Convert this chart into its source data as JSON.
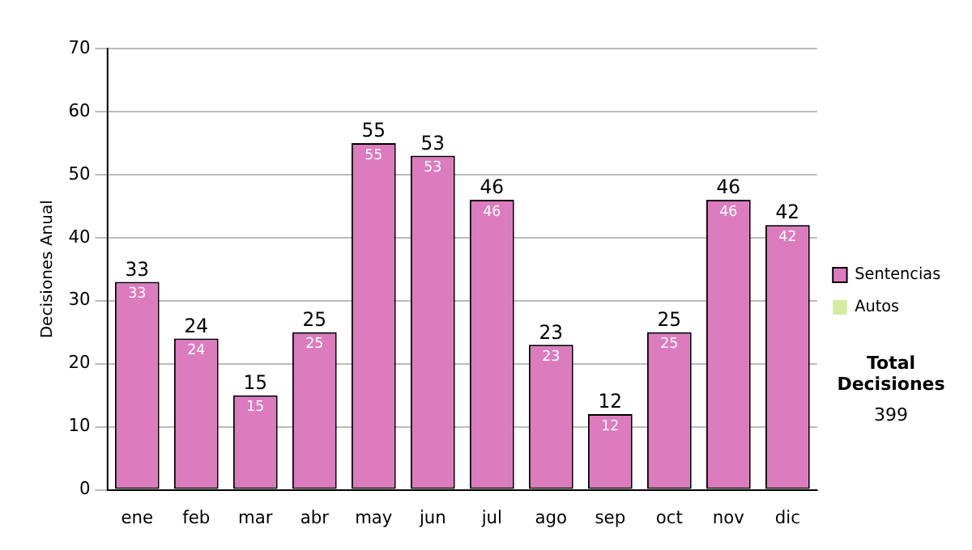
{
  "chart_data": {
    "type": "bar",
    "stacked": true,
    "ylabel": "Decisiones Anual",
    "categories": [
      "ene",
      "feb",
      "mar",
      "abr",
      "may",
      "jun",
      "jul",
      "ago",
      "sep",
      "oct",
      "nov",
      "dic"
    ],
    "series": [
      {
        "name": "Sentencias",
        "color": "#dd7bbf",
        "values": [
          33,
          24,
          15,
          25,
          55,
          53,
          46,
          23,
          12,
          25,
          46,
          42
        ],
        "value_labels": [
          "33",
          "24",
          "15",
          "25",
          "55",
          "53",
          "46",
          "23",
          "12",
          "25",
          "46",
          "42"
        ]
      },
      {
        "name": "Autos",
        "color": "#d6eba0",
        "values": [
          0,
          0,
          0,
          0,
          0,
          0,
          0,
          0,
          0,
          0,
          0,
          0
        ]
      }
    ],
    "totals": [
      "33",
      "24",
      "15",
      "25",
      "55",
      "53",
      "46",
      "23",
      "12",
      "25",
      "46",
      "42"
    ],
    "ylim": [
      0,
      70
    ],
    "yticks": [
      0,
      10,
      20,
      30,
      40,
      50,
      60,
      70
    ],
    "grid": "y",
    "legend": "right",
    "annotations": [
      "Total Decisiones",
      "399"
    ]
  }
}
